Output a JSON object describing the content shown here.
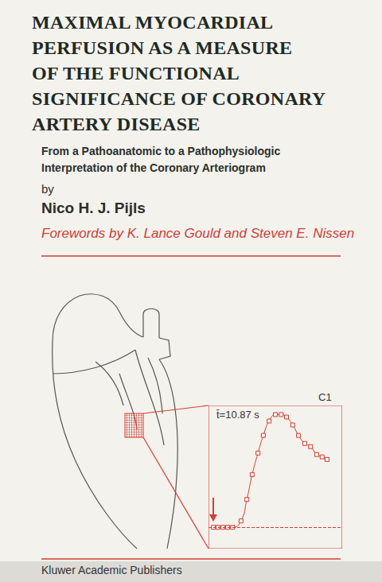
{
  "cover": {
    "title_lines": [
      "MAXIMAL MYOCARDIAL",
      "PERFUSION AS A MEASURE",
      "OF THE FUNCTIONAL",
      "SIGNIFICANCE OF CORONARY",
      "ARTERY DISEASE"
    ],
    "subtitle_lines": [
      "From a Pathoanatomic to a Pathophysiologic",
      "Interpretation of the Coronary Arteriogram"
    ],
    "by": "by",
    "author": "Nico H. J. Pijls",
    "forewords": "Forewords by K. Lance Gould and Steven E. Nissen",
    "publisher": "Kluwer Academic Publishers"
  },
  "chart_data": {
    "type": "line",
    "annotations": [
      "t̄=10.87 s",
      "C1"
    ],
    "x": [
      1.1,
      2.1,
      3.2,
      4.3,
      5.4,
      7.3,
      8.6,
      9.8,
      11.1,
      12.3,
      13.6,
      15.0,
      16.3,
      17.5,
      18.9,
      20.2,
      21.6,
      22.9,
      24.3,
      25.5,
      26.6
    ],
    "values": [
      0,
      0,
      0,
      0,
      0,
      5.4,
      23.6,
      44.6,
      62.8,
      77.7,
      89.9,
      95.3,
      95.3,
      93.2,
      86.5,
      77.7,
      70.9,
      68.2,
      61.5,
      59.5,
      57.4
    ],
    "xlim": [
      0,
      30
    ],
    "ylim": [
      -18,
      103
    ],
    "xticks": [],
    "yticks": [],
    "tick_labels": false,
    "grid": false,
    "color": "#cf3f38",
    "marker": "square"
  }
}
